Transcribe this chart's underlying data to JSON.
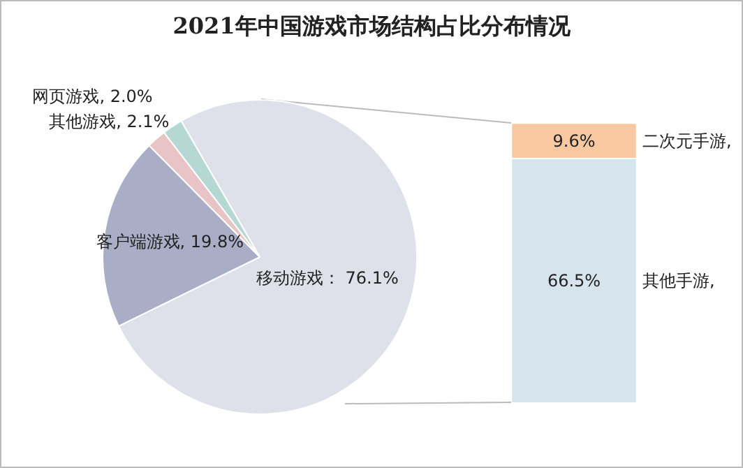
{
  "chart_data": [
    {
      "type": "pie",
      "title": "2021年中国游戏市场结构占比分布情况",
      "categories": [
        "移动游戏",
        "客户端游戏",
        "网页游戏",
        "其他游戏"
      ],
      "values": [
        76.1,
        19.8,
        2.0,
        2.1
      ],
      "value_labels": [
        "76.1%",
        "19.8%",
        "2.0%",
        "2.1%"
      ],
      "colors": [
        "#dfe1ea",
        "#a9adc6",
        "#e8c4c6",
        "#b5d8d4"
      ]
    },
    {
      "type": "bar",
      "stacked": true,
      "categories": [
        null
      ],
      "series": [
        {
          "name": "其他手游,",
          "color": "#d6e4ec",
          "values": [
            66.5
          ],
          "value_labels": [
            "66.5%"
          ]
        },
        {
          "name": "二次元手游,",
          "color": "#f8c9a0",
          "values": [
            9.6
          ],
          "value_labels": [
            "9.6%"
          ]
        }
      ]
    }
  ]
}
